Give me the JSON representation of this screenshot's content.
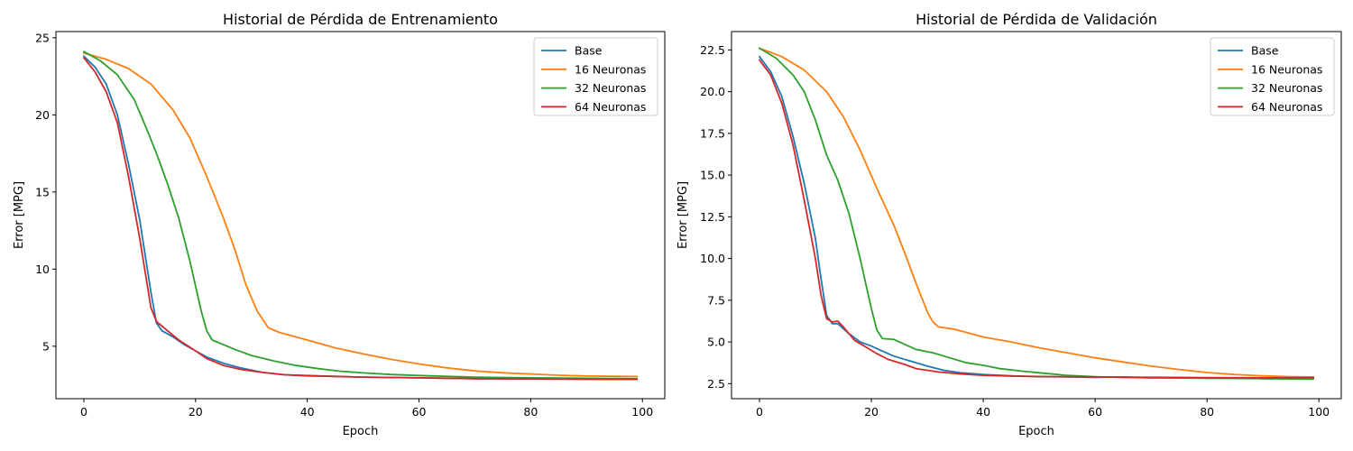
{
  "chart_data": [
    {
      "type": "line",
      "title": "Historial de Pérdida de Entrenamiento",
      "xlabel": "Epoch",
      "ylabel": "Error [MPG]",
      "xlim": [
        -5,
        104
      ],
      "ylim": [
        1.6,
        25.4
      ],
      "xticks": [
        0,
        20,
        40,
        60,
        80,
        100
      ],
      "xtick_labels": [
        "0",
        "20",
        "40",
        "60",
        "80",
        "100"
      ],
      "yticks": [
        5,
        10,
        15,
        20,
        25
      ],
      "ytick_labels": [
        "5",
        "10",
        "15",
        "20",
        "25"
      ],
      "grid": false,
      "legend": "top-right",
      "series": [
        {
          "name": "Base",
          "color": "#1f77b4",
          "points": [
            [
              0,
              23.8
            ],
            [
              2,
              23.1
            ],
            [
              4,
              22.0
            ],
            [
              6,
              20.0
            ],
            [
              8,
              16.8
            ],
            [
              10,
              13.2
            ],
            [
              12,
              8.5
            ],
            [
              13,
              6.5
            ],
            [
              14,
              6.0
            ],
            [
              16,
              5.6
            ],
            [
              18,
              5.1
            ],
            [
              20,
              4.7
            ],
            [
              22,
              4.3
            ],
            [
              25,
              3.9
            ],
            [
              28,
              3.6
            ],
            [
              32,
              3.3
            ],
            [
              36,
              3.15
            ],
            [
              40,
              3.1
            ],
            [
              50,
              3.0
            ],
            [
              60,
              2.95
            ],
            [
              70,
              2.9
            ],
            [
              80,
              2.9
            ],
            [
              90,
              2.88
            ],
            [
              99,
              2.87
            ]
          ]
        },
        {
          "name": "16 Neuronas",
          "color": "#ff7f0e",
          "points": [
            [
              0,
              24.0
            ],
            [
              4,
              23.6
            ],
            [
              8,
              23.0
            ],
            [
              12,
              22.0
            ],
            [
              16,
              20.3
            ],
            [
              19,
              18.5
            ],
            [
              22,
              16.0
            ],
            [
              25,
              13.3
            ],
            [
              27,
              11.3
            ],
            [
              29,
              9.0
            ],
            [
              31,
              7.3
            ],
            [
              33,
              6.2
            ],
            [
              35,
              5.9
            ],
            [
              40,
              5.4
            ],
            [
              45,
              4.9
            ],
            [
              50,
              4.5
            ],
            [
              55,
              4.15
            ],
            [
              60,
              3.85
            ],
            [
              65,
              3.6
            ],
            [
              70,
              3.4
            ],
            [
              75,
              3.28
            ],
            [
              80,
              3.2
            ],
            [
              85,
              3.12
            ],
            [
              90,
              3.07
            ],
            [
              95,
              3.05
            ],
            [
              99,
              3.04
            ]
          ]
        },
        {
          "name": "32 Neuronas",
          "color": "#2ca02c",
          "points": [
            [
              0,
              24.1
            ],
            [
              3,
              23.5
            ],
            [
              6,
              22.6
            ],
            [
              9,
              21.0
            ],
            [
              11,
              19.3
            ],
            [
              13,
              17.5
            ],
            [
              15,
              15.5
            ],
            [
              17,
              13.3
            ],
            [
              19,
              10.5
            ],
            [
              20,
              8.9
            ],
            [
              21,
              7.3
            ],
            [
              22,
              6.0
            ],
            [
              23,
              5.4
            ],
            [
              25,
              5.1
            ],
            [
              27,
              4.8
            ],
            [
              30,
              4.4
            ],
            [
              34,
              4.05
            ],
            [
              38,
              3.75
            ],
            [
              42,
              3.55
            ],
            [
              46,
              3.38
            ],
            [
              50,
              3.27
            ],
            [
              55,
              3.17
            ],
            [
              60,
              3.1
            ],
            [
              70,
              3.0
            ],
            [
              80,
              2.95
            ],
            [
              90,
              2.92
            ],
            [
              99,
              2.9
            ]
          ]
        },
        {
          "name": "64 Neuronas",
          "color": "#d62728",
          "points": [
            [
              0,
              23.7
            ],
            [
              2,
              22.8
            ],
            [
              4,
              21.5
            ],
            [
              6,
              19.5
            ],
            [
              8,
              16.0
            ],
            [
              10,
              12.0
            ],
            [
              12,
              7.5
            ],
            [
              13,
              6.6
            ],
            [
              15,
              6.0
            ],
            [
              17,
              5.4
            ],
            [
              20,
              4.7
            ],
            [
              22,
              4.2
            ],
            [
              25,
              3.75
            ],
            [
              28,
              3.5
            ],
            [
              32,
              3.3
            ],
            [
              36,
              3.15
            ],
            [
              40,
              3.08
            ],
            [
              50,
              3.0
            ],
            [
              60,
              2.95
            ],
            [
              70,
              2.9
            ],
            [
              80,
              2.88
            ],
            [
              90,
              2.86
            ],
            [
              99,
              2.85
            ]
          ]
        }
      ]
    },
    {
      "type": "line",
      "title": "Historial de Pérdida de Validación",
      "xlabel": "Epoch",
      "ylabel": "Error [MPG]",
      "xlim": [
        -5,
        104
      ],
      "ylim": [
        1.6,
        23.6
      ],
      "xticks": [
        0,
        20,
        40,
        60,
        80,
        100
      ],
      "xtick_labels": [
        "0",
        "20",
        "40",
        "60",
        "80",
        "100"
      ],
      "yticks": [
        2.5,
        5.0,
        7.5,
        10.0,
        12.5,
        15.0,
        17.5,
        20.0,
        22.5
      ],
      "ytick_labels": [
        "2.5",
        "5.0",
        "7.5",
        "10.0",
        "12.5",
        "15.0",
        "17.5",
        "20.0",
        "22.5"
      ],
      "grid": false,
      "legend": "top-right",
      "series": [
        {
          "name": "Base",
          "color": "#1f77b4",
          "points": [
            [
              0,
              22.1
            ],
            [
              2,
              21.2
            ],
            [
              4,
              19.7
            ],
            [
              6,
              17.3
            ],
            [
              8,
              14.5
            ],
            [
              10,
              11.2
            ],
            [
              11,
              8.8
            ],
            [
              12,
              6.6
            ],
            [
              13,
              6.1
            ],
            [
              14,
              6.1
            ],
            [
              16,
              5.5
            ],
            [
              18,
              5.0
            ],
            [
              20,
              4.75
            ],
            [
              22,
              4.45
            ],
            [
              24,
              4.15
            ],
            [
              27,
              3.85
            ],
            [
              30,
              3.55
            ],
            [
              33,
              3.3
            ],
            [
              36,
              3.15
            ],
            [
              40,
              3.05
            ],
            [
              45,
              2.97
            ],
            [
              50,
              2.92
            ],
            [
              55,
              2.9
            ],
            [
              60,
              2.88
            ],
            [
              65,
              2.9
            ],
            [
              70,
              2.85
            ],
            [
              75,
              2.87
            ],
            [
              80,
              2.83
            ],
            [
              85,
              2.85
            ],
            [
              90,
              2.8
            ],
            [
              95,
              2.82
            ],
            [
              99,
              2.85
            ]
          ]
        },
        {
          "name": "16 Neuronas",
          "color": "#ff7f0e",
          "points": [
            [
              0,
              22.6
            ],
            [
              4,
              22.1
            ],
            [
              8,
              21.3
            ],
            [
              12,
              20.0
            ],
            [
              15,
              18.5
            ],
            [
              18,
              16.5
            ],
            [
              21,
              14.2
            ],
            [
              24,
              12.0
            ],
            [
              26,
              10.3
            ],
            [
              28,
              8.5
            ],
            [
              30,
              6.8
            ],
            [
              31,
              6.2
            ],
            [
              32,
              5.9
            ],
            [
              35,
              5.75
            ],
            [
              40,
              5.3
            ],
            [
              45,
              5.0
            ],
            [
              50,
              4.65
            ],
            [
              55,
              4.35
            ],
            [
              60,
              4.05
            ],
            [
              65,
              3.8
            ],
            [
              70,
              3.55
            ],
            [
              75,
              3.35
            ],
            [
              80,
              3.17
            ],
            [
              85,
              3.05
            ],
            [
              90,
              2.97
            ],
            [
              95,
              2.92
            ],
            [
              99,
              2.9
            ]
          ]
        },
        {
          "name": "32 Neuronas",
          "color": "#2ca02c",
          "points": [
            [
              0,
              22.6
            ],
            [
              3,
              22.0
            ],
            [
              6,
              21.0
            ],
            [
              8,
              20.0
            ],
            [
              10,
              18.3
            ],
            [
              12,
              16.2
            ],
            [
              14,
              14.7
            ],
            [
              16,
              12.7
            ],
            [
              18,
              10.0
            ],
            [
              19,
              8.5
            ],
            [
              20,
              7.0
            ],
            [
              21,
              5.7
            ],
            [
              22,
              5.2
            ],
            [
              24,
              5.15
            ],
            [
              26,
              4.85
            ],
            [
              28,
              4.55
            ],
            [
              31,
              4.35
            ],
            [
              34,
              4.05
            ],
            [
              37,
              3.75
            ],
            [
              40,
              3.6
            ],
            [
              43,
              3.4
            ],
            [
              47,
              3.25
            ],
            [
              50,
              3.15
            ],
            [
              55,
              3.0
            ],
            [
              60,
              2.92
            ],
            [
              65,
              2.87
            ],
            [
              70,
              2.85
            ],
            [
              80,
              2.82
            ],
            [
              90,
              2.8
            ],
            [
              99,
              2.78
            ]
          ]
        },
        {
          "name": "64 Neuronas",
          "color": "#d62728",
          "points": [
            [
              0,
              21.9
            ],
            [
              2,
              21.0
            ],
            [
              4,
              19.3
            ],
            [
              6,
              16.8
            ],
            [
              8,
              13.5
            ],
            [
              10,
              10.0
            ],
            [
              11,
              7.8
            ],
            [
              12,
              6.4
            ],
            [
              13,
              6.2
            ],
            [
              14,
              6.25
            ],
            [
              15,
              5.9
            ],
            [
              17,
              5.1
            ],
            [
              19,
              4.7
            ],
            [
              21,
              4.3
            ],
            [
              23,
              3.95
            ],
            [
              26,
              3.65
            ],
            [
              28,
              3.4
            ],
            [
              32,
              3.2
            ],
            [
              36,
              3.08
            ],
            [
              40,
              3.0
            ],
            [
              45,
              2.95
            ],
            [
              50,
              2.93
            ],
            [
              60,
              2.9
            ],
            [
              70,
              2.88
            ],
            [
              80,
              2.86
            ],
            [
              90,
              2.85
            ],
            [
              99,
              2.86
            ]
          ]
        }
      ]
    }
  ]
}
